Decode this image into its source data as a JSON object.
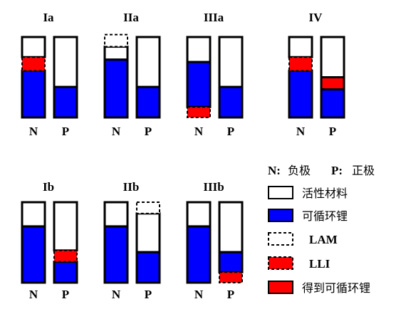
{
  "colors": {
    "active": "#ffffff",
    "cyclable": "#0000ff",
    "lam": "#ffffff",
    "lli": "#ff0000",
    "gained": "#ff0000",
    "outline": "#000000"
  },
  "panels": [
    {
      "title": "Ia",
      "bars": [
        {
          "label": "N",
          "segments": [
            {
              "kind": "cyclable",
              "from": 0,
              "to": 0.58
            },
            {
              "kind": "lli",
              "from": 0.58,
              "to": 0.75
            },
            {
              "kind": "active",
              "from": 0.75,
              "to": 1.0
            }
          ]
        },
        {
          "label": "P",
          "segments": [
            {
              "kind": "cyclable",
              "from": 0,
              "to": 0.38
            },
            {
              "kind": "active",
              "from": 0.38,
              "to": 1.0
            }
          ]
        }
      ]
    },
    {
      "title": "IIa",
      "bars": [
        {
          "label": "N",
          "segments": [
            {
              "kind": "cyclable",
              "from": 0,
              "to": 0.72
            },
            {
              "kind": "active",
              "from": 0.72,
              "to": 0.88
            },
            {
              "kind": "lam",
              "from": 0.88,
              "to": 1.03
            }
          ]
        },
        {
          "label": "P",
          "segments": [
            {
              "kind": "cyclable",
              "from": 0,
              "to": 0.38
            },
            {
              "kind": "active",
              "from": 0.38,
              "to": 1.0
            }
          ]
        }
      ]
    },
    {
      "title": "IIIa",
      "bars": [
        {
          "label": "N",
          "segments": [
            {
              "kind": "lli",
              "from": 0,
              "to": 0.13
            },
            {
              "kind": "cyclable",
              "from": 0.13,
              "to": 0.69
            },
            {
              "kind": "active",
              "from": 0.69,
              "to": 1.0
            }
          ]
        },
        {
          "label": "P",
          "segments": [
            {
              "kind": "cyclable",
              "from": 0,
              "to": 0.38
            },
            {
              "kind": "active",
              "from": 0.38,
              "to": 1.0
            }
          ]
        }
      ]
    },
    {
      "title": "IV",
      "bars": [
        {
          "label": "N",
          "segments": [
            {
              "kind": "cyclable",
              "from": 0,
              "to": 0.58
            },
            {
              "kind": "lli",
              "from": 0.58,
              "to": 0.75
            },
            {
              "kind": "active",
              "from": 0.75,
              "to": 1.0
            }
          ]
        },
        {
          "label": "P",
          "segments": [
            {
              "kind": "cyclable",
              "from": 0,
              "to": 0.35
            },
            {
              "kind": "gained",
              "from": 0.35,
              "to": 0.5
            },
            {
              "kind": "active",
              "from": 0.5,
              "to": 1.0
            }
          ]
        }
      ]
    },
    {
      "title": "Ib",
      "bars": [
        {
          "label": "N",
          "segments": [
            {
              "kind": "cyclable",
              "from": 0,
              "to": 0.7
            },
            {
              "kind": "active",
              "from": 0.7,
              "to": 1.0
            }
          ]
        },
        {
          "label": "P",
          "segments": [
            {
              "kind": "cyclable",
              "from": 0,
              "to": 0.26
            },
            {
              "kind": "lli",
              "from": 0.26,
              "to": 0.4
            },
            {
              "kind": "active",
              "from": 0.4,
              "to": 1.0
            }
          ]
        }
      ]
    },
    {
      "title": "IIb",
      "bars": [
        {
          "label": "N",
          "segments": [
            {
              "kind": "cyclable",
              "from": 0,
              "to": 0.7
            },
            {
              "kind": "active",
              "from": 0.7,
              "to": 1.0
            }
          ]
        },
        {
          "label": "P",
          "segments": [
            {
              "kind": "cyclable",
              "from": 0,
              "to": 0.38
            },
            {
              "kind": "active",
              "from": 0.38,
              "to": 0.86
            },
            {
              "kind": "lam",
              "from": 0.86,
              "to": 1.0
            }
          ]
        }
      ]
    },
    {
      "title": "IIIb",
      "bars": [
        {
          "label": "N",
          "segments": [
            {
              "kind": "cyclable",
              "from": 0,
              "to": 0.7
            },
            {
              "kind": "active",
              "from": 0.7,
              "to": 1.0
            }
          ]
        },
        {
          "label": "P",
          "segments": [
            {
              "kind": "lli",
              "from": 0,
              "to": 0.13
            },
            {
              "kind": "cyclable",
              "from": 0.13,
              "to": 0.38
            },
            {
              "kind": "active",
              "from": 0.38,
              "to": 1.0
            }
          ]
        }
      ]
    }
  ],
  "legend": {
    "electrodes": {
      "n_abbr": "N:",
      "n_name": "负极",
      "p_abbr": "P:",
      "p_name": "正极"
    },
    "items": [
      {
        "kind": "active",
        "label": "活性材料"
      },
      {
        "kind": "cyclable",
        "label": "可循环锂"
      },
      {
        "kind": "lam",
        "label": "LAM"
      },
      {
        "kind": "lli",
        "label": "LLI"
      },
      {
        "kind": "gained",
        "label": "得到可循环锂"
      }
    ]
  }
}
